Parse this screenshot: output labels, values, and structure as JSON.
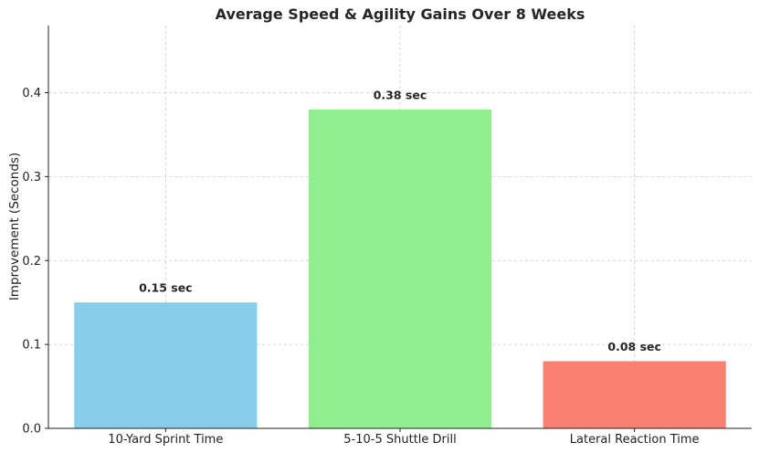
{
  "chart_data": {
    "type": "bar",
    "title": "Average Speed & Agility Gains Over 8 Weeks",
    "xlabel": "",
    "ylabel": "Improvement (Seconds)",
    "categories": [
      "10-Yard Sprint Time",
      "5-10-5 Shuttle Drill",
      "Lateral Reaction Time"
    ],
    "values": [
      0.15,
      0.38,
      0.08
    ],
    "data_labels": [
      "0.15 sec",
      "0.38 sec",
      "0.08 sec"
    ],
    "colors": [
      "#87ceeb",
      "#90ee90",
      "#fa8072"
    ],
    "ylim": [
      0,
      0.48
    ],
    "yticks": [
      0.0,
      0.1,
      0.2,
      0.3,
      0.4
    ],
    "ytick_labels": [
      "0.0",
      "0.1",
      "0.2",
      "0.3",
      "0.4"
    ],
    "grid": true
  }
}
